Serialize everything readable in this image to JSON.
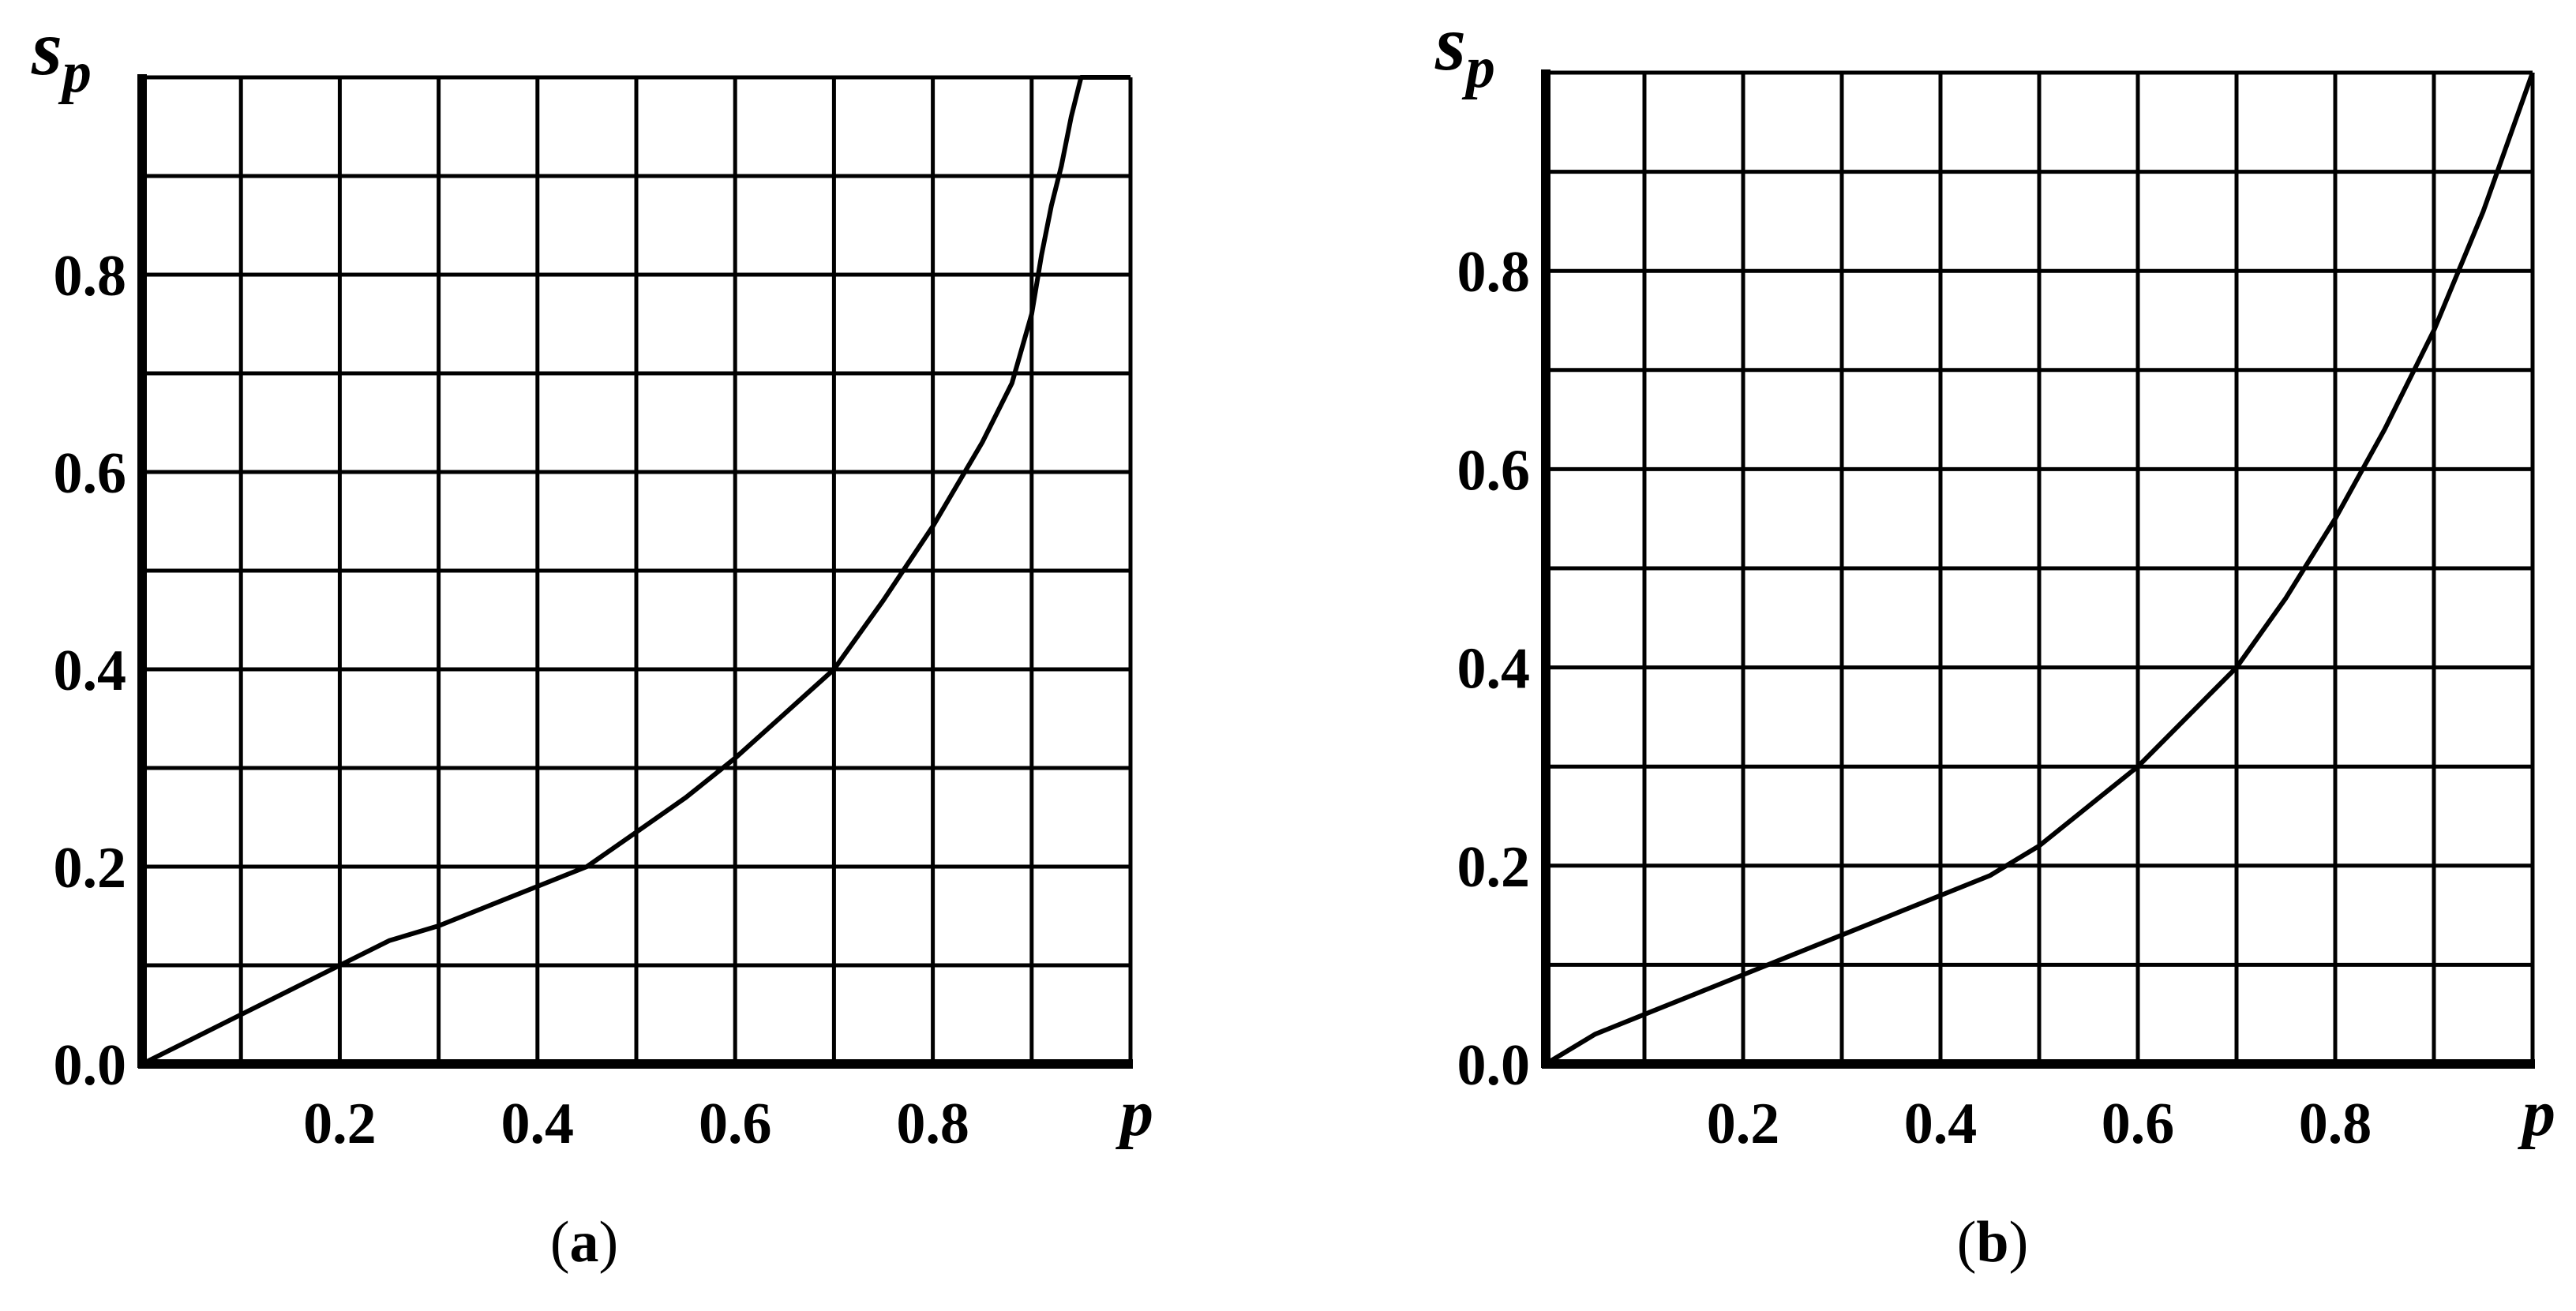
{
  "chart_data": [
    {
      "type": "line",
      "panel_label": "a",
      "xlabel": "p",
      "ylabel": "s",
      "ylabel_sub": "p",
      "xlim": [
        0,
        1
      ],
      "ylim": [
        0,
        1
      ],
      "x_tick_labels": [
        "0.2",
        "0.4",
        "0.6",
        "0.8"
      ],
      "x_tick_values": [
        0.2,
        0.4,
        0.6,
        0.8
      ],
      "y_tick_labels": [
        "0.0",
        "0.2",
        "0.4",
        "0.6",
        "0.8"
      ],
      "y_tick_values": [
        0.0,
        0.2,
        0.4,
        0.6,
        0.8
      ],
      "grid": true,
      "grid_step": 0.1,
      "series": [
        {
          "x": [
            0.0,
            0.05,
            0.1,
            0.15,
            0.2,
            0.25,
            0.3,
            0.35,
            0.4,
            0.45,
            0.5,
            0.55,
            0.6,
            0.65,
            0.7,
            0.75,
            0.8,
            0.85,
            0.88,
            0.9,
            0.91,
            0.92,
            0.93,
            0.94,
            0.95,
            1.0
          ],
          "y": [
            0.0,
            0.025,
            0.05,
            0.075,
            0.1,
            0.125,
            0.14,
            0.16,
            0.18,
            0.2,
            0.235,
            0.27,
            0.31,
            0.355,
            0.4,
            0.47,
            0.545,
            0.63,
            0.69,
            0.76,
            0.82,
            0.87,
            0.91,
            0.96,
            1.0,
            1.0
          ]
        }
      ]
    },
    {
      "type": "line",
      "panel_label": "b",
      "xlabel": "p",
      "ylabel": "s",
      "ylabel_sub": "p",
      "xlim": [
        0,
        1
      ],
      "ylim": [
        0,
        1
      ],
      "x_tick_labels": [
        "0.2",
        "0.4",
        "0.6",
        "0.8"
      ],
      "x_tick_values": [
        0.2,
        0.4,
        0.6,
        0.8
      ],
      "y_tick_labels": [
        "0.0",
        "0.2",
        "0.4",
        "0.6",
        "0.8"
      ],
      "y_tick_values": [
        0.0,
        0.2,
        0.4,
        0.6,
        0.8
      ],
      "grid": true,
      "grid_step": 0.1,
      "series": [
        {
          "x": [
            0.0,
            0.05,
            0.1,
            0.15,
            0.2,
            0.25,
            0.3,
            0.35,
            0.4,
            0.45,
            0.5,
            0.55,
            0.6,
            0.65,
            0.7,
            0.75,
            0.8,
            0.85,
            0.9,
            0.95,
            1.0
          ],
          "y": [
            0.0,
            0.03,
            0.05,
            0.07,
            0.09,
            0.11,
            0.13,
            0.15,
            0.17,
            0.19,
            0.22,
            0.26,
            0.3,
            0.35,
            0.4,
            0.47,
            0.55,
            0.64,
            0.74,
            0.86,
            1.0
          ]
        }
      ]
    }
  ]
}
